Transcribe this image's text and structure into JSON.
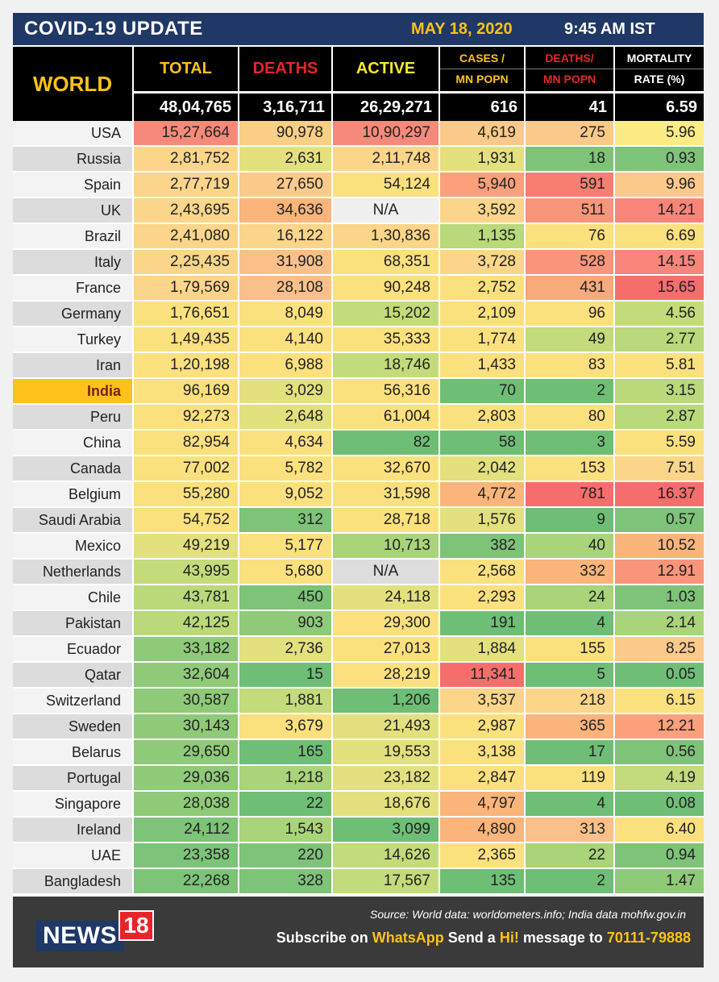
{
  "header": {
    "title": "COVID-19 UPDATE",
    "date": "MAY 18, 2020",
    "time": "9:45 AM IST"
  },
  "world": {
    "label": "WORLD",
    "columns": [
      "TOTAL",
      "DEATHS",
      "ACTIVE",
      "CASES /",
      "MN POPN",
      "DEATHS/",
      "MN POPN",
      "MORTALITY",
      "RATE (%)"
    ],
    "totals": [
      "48,04,765",
      "3,16,711",
      "26,29,271",
      "616",
      "41",
      "6.59"
    ]
  },
  "colors": {
    "navy": "#1f3865",
    "yellow": "#fcc21b",
    "red": "#e8242a"
  },
  "rows": [
    {
      "name": "USA",
      "v": [
        "15,27,664",
        "90,978",
        "10,90,297",
        "4,619",
        "275",
        "5.96"
      ]
    },
    {
      "name": "Russia",
      "v": [
        "2,81,752",
        "2,631",
        "2,11,748",
        "1,931",
        "18",
        "0.93"
      ]
    },
    {
      "name": "Spain",
      "v": [
        "2,77,719",
        "27,650",
        "54,124",
        "5,940",
        "591",
        "9.96"
      ]
    },
    {
      "name": "UK",
      "v": [
        "2,43,695",
        "34,636",
        "N/A",
        "3,592",
        "511",
        "14.21"
      ]
    },
    {
      "name": "Brazil",
      "v": [
        "2,41,080",
        "16,122",
        "1,30,836",
        "1,135",
        "76",
        "6.69"
      ]
    },
    {
      "name": "Italy",
      "v": [
        "2,25,435",
        "31,908",
        "68,351",
        "3,728",
        "528",
        "14.15"
      ]
    },
    {
      "name": "France",
      "v": [
        "1,79,569",
        "28,108",
        "90,248",
        "2,752",
        "431",
        "15.65"
      ]
    },
    {
      "name": "Germany",
      "v": [
        "1,76,651",
        "8,049",
        "15,202",
        "2,109",
        "96",
        "4.56"
      ]
    },
    {
      "name": "Turkey",
      "v": [
        "1,49,435",
        "4,140",
        "35,333",
        "1,774",
        "49",
        "2.77"
      ]
    },
    {
      "name": "Iran",
      "v": [
        "1,20,198",
        "6,988",
        "18,746",
        "1,433",
        "83",
        "5.81"
      ]
    },
    {
      "name": "India",
      "v": [
        "96,169",
        "3,029",
        "56,316",
        "70",
        "2",
        "3.15"
      ]
    },
    {
      "name": "Peru",
      "v": [
        "92,273",
        "2,648",
        "61,004",
        "2,803",
        "80",
        "2.87"
      ]
    },
    {
      "name": "China",
      "v": [
        "82,954",
        "4,634",
        "82",
        "58",
        "3",
        "5.59"
      ]
    },
    {
      "name": "Canada",
      "v": [
        "77,002",
        "5,782",
        "32,670",
        "2,042",
        "153",
        "7.51"
      ]
    },
    {
      "name": "Belgium",
      "v": [
        "55,280",
        "9,052",
        "31,598",
        "4,772",
        "781",
        "16.37"
      ]
    },
    {
      "name": "Saudi Arabia",
      "v": [
        "54,752",
        "312",
        "28,718",
        "1,576",
        "9",
        "0.57"
      ]
    },
    {
      "name": "Mexico",
      "v": [
        "49,219",
        "5,177",
        "10,713",
        "382",
        "40",
        "10.52"
      ]
    },
    {
      "name": "Netherlands",
      "v": [
        "43,995",
        "5,680",
        "N/A",
        "2,568",
        "332",
        "12.91"
      ]
    },
    {
      "name": "Chile",
      "v": [
        "43,781",
        "450",
        "24,118",
        "2,293",
        "24",
        "1.03"
      ]
    },
    {
      "name": "Pakistan",
      "v": [
        "42,125",
        "903",
        "29,300",
        "191",
        "4",
        "2.14"
      ]
    },
    {
      "name": "Ecuador",
      "v": [
        "33,182",
        "2,736",
        "27,013",
        "1,884",
        "155",
        "8.25"
      ]
    },
    {
      "name": "Qatar",
      "v": [
        "32,604",
        "15",
        "28,219",
        "11,341",
        "5",
        "0.05"
      ]
    },
    {
      "name": "Switzerland",
      "v": [
        "30,587",
        "1,881",
        "1,206",
        "3,537",
        "218",
        "6.15"
      ]
    },
    {
      "name": "Sweden",
      "v": [
        "30,143",
        "3,679",
        "21,493",
        "2,987",
        "365",
        "12.21"
      ]
    },
    {
      "name": "Belarus",
      "v": [
        "29,650",
        "165",
        "19,553",
        "3,138",
        "17",
        "0.56"
      ]
    },
    {
      "name": "Portugal",
      "v": [
        "29,036",
        "1,218",
        "23,182",
        "2,847",
        "119",
        "4.19"
      ]
    },
    {
      "name": "Singapore",
      "v": [
        "28,038",
        "22",
        "18,676",
        "4,797",
        "4",
        "0.08"
      ]
    },
    {
      "name": "Ireland",
      "v": [
        "24,112",
        "1,543",
        "3,099",
        "4,890",
        "313",
        "6.40"
      ]
    },
    {
      "name": "UAE",
      "v": [
        "23,358",
        "220",
        "14,626",
        "2,365",
        "22",
        "0.94"
      ]
    },
    {
      "name": "Bangladesh",
      "v": [
        "22,268",
        "328",
        "17,567",
        "135",
        "2",
        "1.47"
      ]
    }
  ],
  "cell_colors": [
    [
      "#f68a7a",
      "#f8cf84",
      "#f68a7a",
      "#fbc98a",
      "#fbc98a",
      "#fcec85"
    ],
    [
      "#fbd58a",
      "#e3e07e",
      "#fbd58a",
      "#e3e07e",
      "#7dc378",
      "#7dc378"
    ],
    [
      "#fbd58a",
      "#fbc98a",
      "#fbe07e",
      "#fba07a",
      "#f77e70",
      "#fbc98a"
    ],
    [
      "#fbd58a",
      "#fbb47a",
      "#efefef",
      "#fbd58a",
      "#f8957a",
      "#f8857a"
    ],
    [
      "#fbd58a",
      "#fbd58a",
      "#fbd58a",
      "#b9d97a",
      "#fbe07e",
      "#fbe07e"
    ],
    [
      "#fbd58a",
      "#fbc08a",
      "#fbe07e",
      "#fbd58a",
      "#f8957a",
      "#f8857a"
    ],
    [
      "#fbd58a",
      "#fbc08a",
      "#fbe07e",
      "#fbe07e",
      "#f8aa7a",
      "#f66e6c"
    ],
    [
      "#fbe07e",
      "#fbe07e",
      "#c3db7a",
      "#fbe07e",
      "#fbe07e",
      "#c3db7a"
    ],
    [
      "#fbe07e",
      "#fbe07e",
      "#fbe07e",
      "#fbe07e",
      "#c3db7a",
      "#b9d97a"
    ],
    [
      "#fbe07e",
      "#fbe07e",
      "#c3db7a",
      "#fbe07e",
      "#fbe07e",
      "#fbe07e"
    ],
    [
      "#fbe07e",
      "#e3e07e",
      "#fbe07e",
      "#6fbe75",
      "#6fbe75",
      "#b9d97a"
    ],
    [
      "#fbe07e",
      "#e3e07e",
      "#fbe07e",
      "#fbe07e",
      "#fbe07e",
      "#b9d97a"
    ],
    [
      "#fbe07e",
      "#fbe07e",
      "#6fbe75",
      "#6fbe75",
      "#6fbe75",
      "#fbe07e"
    ],
    [
      "#fbe07e",
      "#fbe07e",
      "#fbe07e",
      "#e3e07e",
      "#fbe07e",
      "#fbd58a"
    ],
    [
      "#fbe07e",
      "#fbe07e",
      "#fbe07e",
      "#fbb47a",
      "#f66e6c",
      "#f66e6c"
    ],
    [
      "#fbe07e",
      "#7dc378",
      "#fbe07e",
      "#e3e07e",
      "#6fbe75",
      "#7dc378"
    ],
    [
      "#e3e07e",
      "#fbe07e",
      "#a9d47a",
      "#7dc378",
      "#a9d47a",
      "#fbb47a"
    ],
    [
      "#c3db7a",
      "#fbe07e",
      "#dddddd",
      "#fbe07e",
      "#fbb47a",
      "#f8957a"
    ],
    [
      "#b9d97a",
      "#7dc378",
      "#e3e07e",
      "#fbe07e",
      "#a9d47a",
      "#7dc378"
    ],
    [
      "#b9d97a",
      "#8fca78",
      "#fbe07e",
      "#6fbe75",
      "#6fbe75",
      "#a9d47a"
    ],
    [
      "#8fca78",
      "#e3e07e",
      "#fbe07e",
      "#e3e07e",
      "#fbe07e",
      "#fbc98a"
    ],
    [
      "#8fca78",
      "#6fbe75",
      "#fbe07e",
      "#f66e6c",
      "#6fbe75",
      "#6fbe75"
    ],
    [
      "#8fca78",
      "#c3db7a",
      "#6fbe75",
      "#fbd58a",
      "#fbd58a",
      "#fbe07e"
    ],
    [
      "#8fca78",
      "#fbe07e",
      "#e3e07e",
      "#fbe07e",
      "#fbb47a",
      "#fba07a"
    ],
    [
      "#8fca78",
      "#6fbe75",
      "#e3e07e",
      "#fbe07e",
      "#6fbe75",
      "#7dc378"
    ],
    [
      "#8fca78",
      "#a9d47a",
      "#e3e07e",
      "#fbe07e",
      "#fbe07e",
      "#c3db7a"
    ],
    [
      "#8fca78",
      "#6fbe75",
      "#e3e07e",
      "#fbb47a",
      "#6fbe75",
      "#6fbe75"
    ],
    [
      "#7dc378",
      "#a9d47a",
      "#6fbe75",
      "#fbb47a",
      "#fbc08a",
      "#fbe07e"
    ],
    [
      "#7dc378",
      "#7dc378",
      "#c3db7a",
      "#fbe07e",
      "#a9d47a",
      "#7dc378"
    ],
    [
      "#7dc378",
      "#7dc378",
      "#c3db7a",
      "#6fbe75",
      "#6fbe75",
      "#8fca78"
    ]
  ],
  "footer": {
    "logo_news": "NEWS",
    "logo_18": "18",
    "source": "Source: World data: worldometers.info; India data mohfw.gov.in",
    "sub_1": "Subscribe on ",
    "sub_whatsapp": "WhatsApp",
    "sub_2": " Send a ",
    "sub_hi": "Hi!",
    "sub_3": " message to ",
    "sub_number": "70111-79888"
  }
}
